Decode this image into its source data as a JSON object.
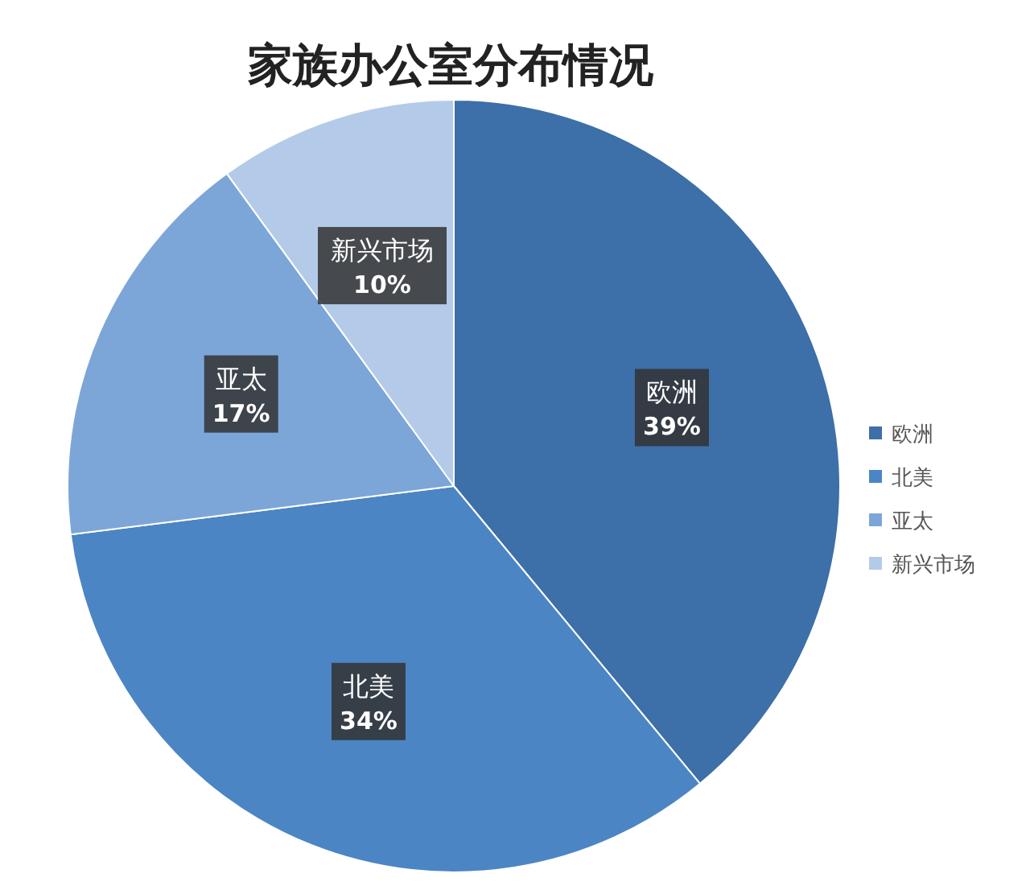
{
  "chart_data": {
    "type": "pie",
    "title": "家族办公室分布情况",
    "categories": [
      "欧洲",
      "北美",
      "亚太",
      "新兴市场"
    ],
    "values": [
      39,
      34,
      17,
      10
    ],
    "colors": [
      "#3d6fa8",
      "#4b85c4",
      "#7ca6d8",
      "#b3cbe8"
    ],
    "value_labels": [
      "39%",
      "34%",
      "17%",
      "10%"
    ],
    "legend": "right"
  }
}
